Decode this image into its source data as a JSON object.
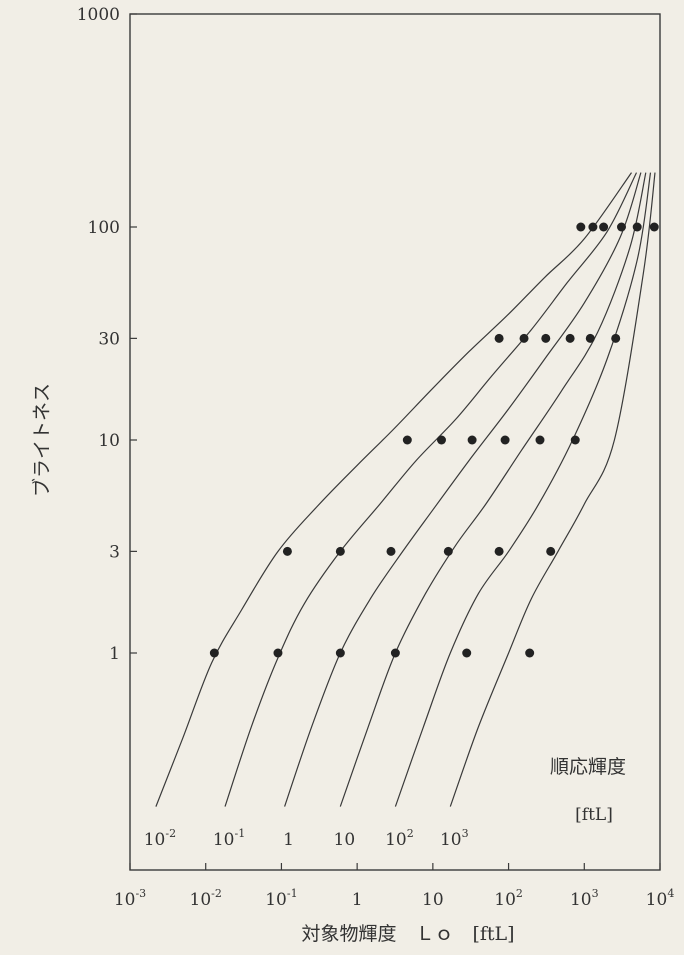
{
  "chart_data": {
    "type": "line",
    "title": "",
    "xlabel": "対象物輝度　Ｌｏ　[ftL]",
    "ylabel": "ブライトネス",
    "xscale": "log",
    "yscale": "log",
    "xlim": [
      0.001,
      10000
    ],
    "ylim": [
      0.13,
      1000
    ],
    "x_ticks": [
      {
        "value": 0.001,
        "base": "10",
        "exp": "-3"
      },
      {
        "value": 0.01,
        "base": "10",
        "exp": "-2"
      },
      {
        "value": 0.1,
        "base": "10",
        "exp": "-1"
      },
      {
        "value": 1,
        "base": "1",
        "exp": ""
      },
      {
        "value": 10,
        "base": "10",
        "exp": ""
      },
      {
        "value": 100,
        "base": "10",
        "exp": "2"
      },
      {
        "value": 1000,
        "base": "10",
        "exp": "3"
      },
      {
        "value": 10000,
        "base": "10",
        "exp": "4"
      }
    ],
    "y_ticks": [
      {
        "value": 1,
        "label": "1"
      },
      {
        "value": 3,
        "label": "3"
      },
      {
        "value": 10,
        "label": "10"
      },
      {
        "value": 30,
        "label": "30"
      },
      {
        "value": 100,
        "label": "100"
      },
      {
        "value": 1000,
        "label": "1000"
      }
    ],
    "grid": false,
    "legend_title": "順応輝度",
    "legend_unit": "[ftL]",
    "series": [
      {
        "name_base": "10",
        "name_exp": "-2",
        "adaptation": 0.01,
        "curve": {
          "x": [
            0.0022,
            0.005,
            0.012,
            0.03,
            0.09,
            0.3,
            1.0,
            3.0,
            10,
            30,
            100,
            300,
            1000,
            4200
          ],
          "y": [
            0.19,
            0.4,
            0.9,
            1.6,
            3.0,
            4.9,
            7.6,
            11.2,
            17.5,
            26,
            39,
            58,
            88,
            180
          ]
        },
        "points": {
          "x": [
            0.013,
            0.12,
            4.6,
            75,
            900
          ],
          "y": [
            1,
            3,
            10,
            30,
            100
          ]
        }
      },
      {
        "name_base": "10",
        "name_exp": "-1",
        "adaptation": 0.1,
        "curve": {
          "x": [
            0.018,
            0.04,
            0.09,
            0.2,
            0.6,
            2.0,
            6.0,
            20,
            60,
            200,
            600,
            2000,
            4900
          ],
          "y": [
            0.19,
            0.45,
            0.95,
            1.7,
            3.0,
            5.0,
            8.0,
            12.5,
            20,
            33,
            55,
            95,
            180
          ]
        },
        "points": {
          "x": [
            0.09,
            0.6,
            13,
            160,
            1300
          ],
          "y": [
            1,
            3,
            10,
            30,
            100
          ]
        }
      },
      {
        "name_base": "1",
        "name_exp": "",
        "adaptation": 1,
        "curve": {
          "x": [
            0.11,
            0.25,
            0.6,
            1.5,
            4.0,
            10,
            30,
            100,
            300,
            1000,
            3000,
            5600
          ],
          "y": [
            0.19,
            0.45,
            1.0,
            1.8,
            3.0,
            4.7,
            8.0,
            14,
            24,
            44,
            90,
            180
          ]
        },
        "points": {
          "x": [
            0.6,
            2.8,
            33,
            310,
            1800
          ],
          "y": [
            1,
            3,
            10,
            30,
            100
          ]
        }
      },
      {
        "name_base": "10",
        "name_exp": "",
        "adaptation": 10,
        "curve": {
          "x": [
            0.6,
            1.4,
            3.2,
            8.0,
            20,
            50,
            150,
            500,
            1500,
            4000,
            6500
          ],
          "y": [
            0.19,
            0.45,
            1.0,
            1.9,
            3.2,
            5.0,
            9.0,
            17,
            32,
            80,
            180
          ]
        },
        "points": {
          "x": [
            3.2,
            16,
            90,
            650,
            3100
          ],
          "y": [
            1,
            3,
            10,
            30,
            100
          ]
        }
      },
      {
        "name_base": "10",
        "name_exp": "2",
        "adaptation": 100,
        "curve": {
          "x": [
            3.2,
            7.5,
            17,
            40,
            100,
            250,
            700,
            2000,
            5000,
            7500
          ],
          "y": [
            0.19,
            0.45,
            1.0,
            1.9,
            3.0,
            5.0,
            10,
            24,
            70,
            180
          ]
        },
        "points": {
          "x": [
            28,
            75,
            260,
            1200,
            5000
          ],
          "y": [
            1,
            3,
            10,
            30,
            100
          ]
        }
      },
      {
        "name_base": "10",
        "name_exp": "3",
        "adaptation": 1000,
        "curve": {
          "x": [
            17,
            40,
            100,
            200,
            450,
            1000,
            2500,
            6000,
            8600
          ],
          "y": [
            0.19,
            0.45,
            1.0,
            1.8,
            3.0,
            5.0,
            10,
            60,
            180
          ]
        },
        "points": {
          "x": [
            190,
            360,
            760,
            2600,
            8400
          ],
          "y": [
            1,
            3,
            10,
            30,
            100
          ]
        }
      }
    ]
  }
}
